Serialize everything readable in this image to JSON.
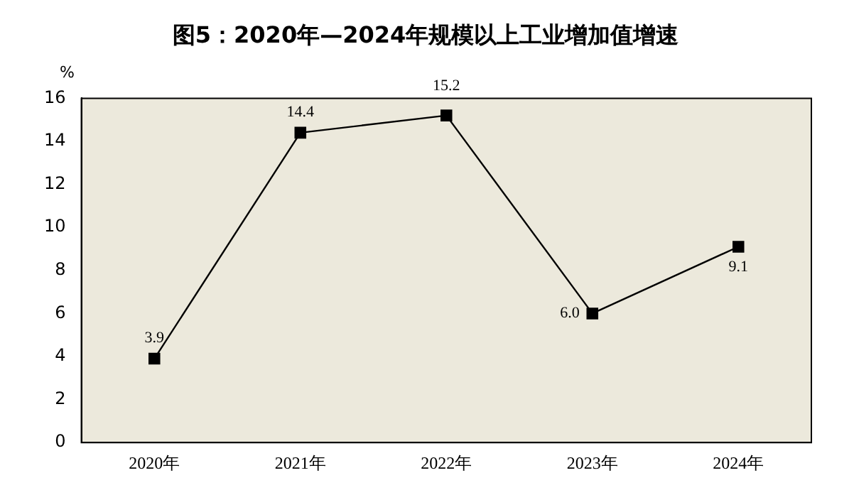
{
  "chart_data": {
    "type": "line",
    "title": "图5：2020年—2024年规模以上工业增加值增速",
    "ylabel": "%",
    "categories": [
      "2020年",
      "2021年",
      "2022年",
      "2023年",
      "2024年"
    ],
    "series": [
      {
        "color": "#000000",
        "values": [
          3.9,
          14.4,
          15.2,
          6.0,
          9.1
        ],
        "value_labels": [
          "3.9",
          "14.4",
          "15.2",
          "6.0",
          "9.1"
        ]
      }
    ],
    "ylim": [
      0,
      16
    ],
    "yticks": [
      0,
      2,
      4,
      6,
      8,
      10,
      12,
      14,
      16
    ],
    "grid": false,
    "legend": false,
    "marker": "square",
    "line_style": "solid"
  }
}
